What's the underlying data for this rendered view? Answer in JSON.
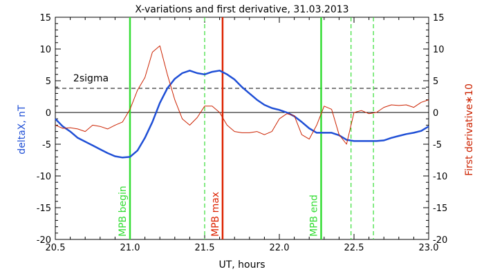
{
  "chart_data": {
    "type": "line",
    "title": "X-variations and first derivative, 31.03.2013",
    "xlabel": "UT, hours",
    "ylabel_left": "deltaX, nT",
    "ylabel_right": "First derivative∗10",
    "xlim": [
      20.5,
      23.0
    ],
    "ylim": [
      -20,
      15
    ],
    "xticks": [
      "20.5",
      "21.0",
      "21.5",
      "22.0",
      "22.5",
      "23.0"
    ],
    "yticks": [
      "15",
      "10",
      "5",
      "0",
      "-5",
      "-10",
      "-15",
      "-20"
    ],
    "yticks_right": [
      "15",
      "10",
      "5",
      "0",
      "-5",
      "-10",
      "-15",
      "-20"
    ],
    "colors": {
      "deltaX": "#1f4fd6",
      "derivative": "#cc2200",
      "mpb": "#33dd33",
      "mpb_max": "#dd2200"
    },
    "sigma_label": "2sigma",
    "sigma_level": 3.8,
    "zero_level": 0,
    "series": [
      {
        "key": "deltaX",
        "x": [
          20.5,
          20.55,
          20.6,
          20.65,
          20.7,
          20.75,
          20.8,
          20.85,
          20.9,
          20.95,
          21.0,
          21.05,
          21.1,
          21.15,
          21.2,
          21.25,
          21.3,
          21.35,
          21.4,
          21.45,
          21.5,
          21.55,
          21.6,
          21.65,
          21.7,
          21.75,
          21.8,
          21.85,
          21.9,
          21.95,
          22.0,
          22.05,
          22.1,
          22.15,
          22.2,
          22.25,
          22.3,
          22.35,
          22.4,
          22.45,
          22.5,
          22.55,
          22.6,
          22.65,
          22.7,
          22.75,
          22.8,
          22.85,
          22.9,
          22.95,
          23.0
        ],
        "values": [
          -1.0,
          -2.2,
          -3.0,
          -4.0,
          -4.6,
          -5.2,
          -5.8,
          -6.4,
          -6.9,
          -7.1,
          -7.0,
          -6.0,
          -4.0,
          -1.5,
          1.5,
          3.8,
          5.3,
          6.2,
          6.6,
          6.2,
          6.0,
          6.4,
          6.6,
          6.0,
          5.2,
          4.0,
          3.0,
          2.0,
          1.2,
          0.7,
          0.4,
          0.0,
          -0.6,
          -1.5,
          -2.5,
          -3.2,
          -3.2,
          -3.2,
          -3.6,
          -4.3,
          -4.5,
          -4.5,
          -4.5,
          -4.5,
          -4.4,
          -4.0,
          -3.7,
          -3.4,
          -3.2,
          -2.9,
          -2.2
        ]
      },
      {
        "key": "derivative",
        "x": [
          20.5,
          20.55,
          20.6,
          20.65,
          20.7,
          20.75,
          20.8,
          20.85,
          20.9,
          20.95,
          21.0,
          21.05,
          21.1,
          21.15,
          21.2,
          21.25,
          21.3,
          21.35,
          21.4,
          21.45,
          21.5,
          21.55,
          21.6,
          21.65,
          21.7,
          21.75,
          21.8,
          21.85,
          21.9,
          21.95,
          22.0,
          22.05,
          22.1,
          22.15,
          22.2,
          22.25,
          22.3,
          22.35,
          22.4,
          22.45,
          22.5,
          22.55,
          22.6,
          22.65,
          22.7,
          22.75,
          22.8,
          22.85,
          22.9,
          22.95,
          23.0
        ],
        "values": [
          -2.0,
          -2.5,
          -2.4,
          -2.6,
          -3.0,
          -2.0,
          -2.2,
          -2.6,
          -2.0,
          -1.5,
          0.5,
          3.5,
          5.5,
          9.5,
          10.5,
          6.0,
          2.0,
          -1.0,
          -2.0,
          -0.8,
          1.0,
          1.0,
          0.0,
          -2.0,
          -3.0,
          -3.2,
          -3.2,
          -3.0,
          -3.5,
          -3.0,
          -1.0,
          -0.2,
          -0.5,
          -3.5,
          -4.2,
          -2.0,
          1.0,
          0.5,
          -3.5,
          -5.0,
          0.0,
          0.3,
          -0.2,
          0.0,
          0.8,
          1.2,
          1.1,
          1.2,
          0.8,
          1.6,
          2.0
        ]
      }
    ],
    "vertical_markers": [
      {
        "x": 21.0,
        "label": "MPB begin",
        "style": "solid",
        "color": "#33dd33"
      },
      {
        "x": 21.5,
        "label": "",
        "style": "dashed",
        "color": "#33dd33"
      },
      {
        "x": 21.62,
        "label": "MPB max",
        "style": "solid",
        "color": "#dd2200"
      },
      {
        "x": 22.28,
        "label": "MPB end",
        "style": "solid",
        "color": "#33dd33"
      },
      {
        "x": 22.48,
        "label": "",
        "style": "dashed",
        "color": "#33dd33"
      },
      {
        "x": 22.63,
        "label": "",
        "style": "dashed",
        "color": "#33dd33"
      }
    ]
  }
}
